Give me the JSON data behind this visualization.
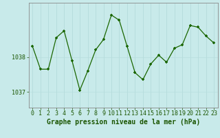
{
  "x": [
    0,
    1,
    2,
    3,
    4,
    5,
    6,
    7,
    8,
    9,
    10,
    11,
    12,
    13,
    14,
    15,
    16,
    17,
    18,
    19,
    20,
    21,
    22,
    23
  ],
  "y": [
    1038.3,
    1037.65,
    1037.65,
    1038.55,
    1038.75,
    1037.9,
    1037.05,
    1037.6,
    1038.2,
    1038.5,
    1039.2,
    1039.05,
    1038.3,
    1037.55,
    1037.35,
    1037.8,
    1038.05,
    1037.85,
    1038.25,
    1038.35,
    1038.9,
    1038.85,
    1038.6,
    1038.4
  ],
  "line_color": "#1a6600",
  "marker_color": "#1a6600",
  "bg_color": "#c8eaea",
  "plot_bg_color": "#c8eaea",
  "grid_color_v": "#b0d8d8",
  "grid_color_h": "#b8dede",
  "xlabel": "Graphe pression niveau de la mer (hPa)",
  "ytick_labels": [
    "1037",
    "1038"
  ],
  "ytick_vals": [
    1037.0,
    1038.0
  ],
  "ylim": [
    1036.55,
    1039.55
  ],
  "xlim": [
    -0.5,
    23.5
  ],
  "tick_fontsize": 6,
  "label_fontsize": 7
}
